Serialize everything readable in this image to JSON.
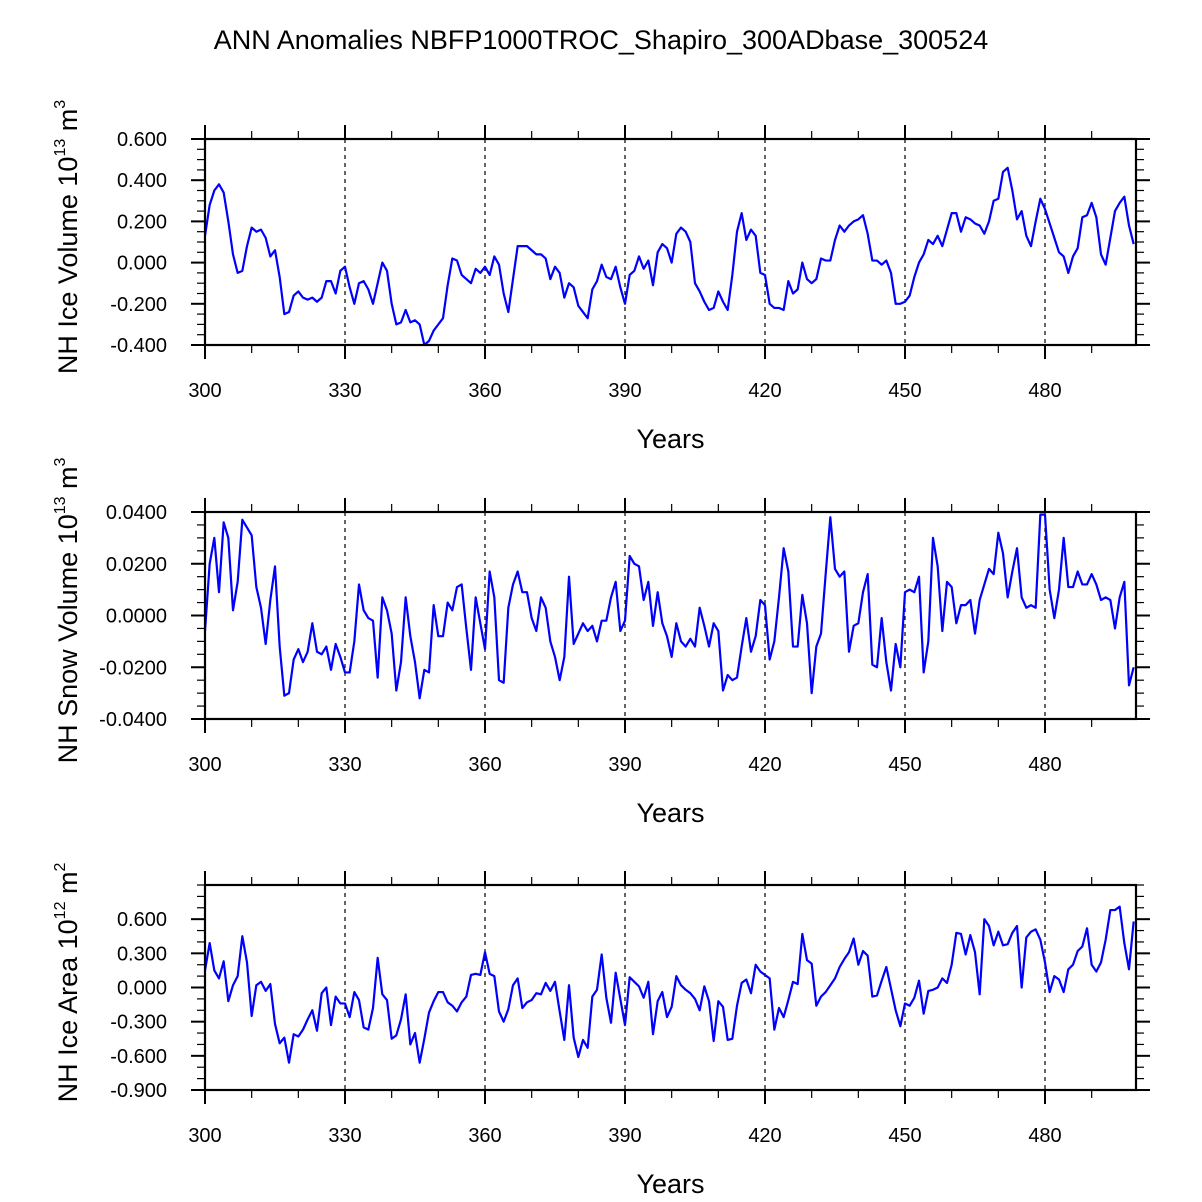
{
  "chart_data": {
    "title": "ANN Anomalies NBFP1000TROC_Shapiro_300ADbase_300524",
    "line_color": "#0000ff",
    "x_start": 300,
    "panels": [
      {
        "type": "line",
        "name": "ice-volume",
        "ylabel_main": "NH Ice Volume 10",
        "ylabel_exp": "13",
        "ylabel_unit": " m",
        "ylabel_unit_exp": "3",
        "xlabel": "Years",
        "xlim": [
          300,
          499.5
        ],
        "ylim": [
          -0.4,
          0.6
        ],
        "xticks": [
          300,
          330,
          360,
          390,
          420,
          450,
          480
        ],
        "xtick_labels": [
          "300",
          "330",
          "360",
          "390",
          "420",
          "450",
          "480"
        ],
        "x_minor_step": 10,
        "yticks": [
          -0.4,
          -0.2,
          0.0,
          0.2,
          0.4,
          0.6
        ],
        "ytick_labels": [
          "-0.400",
          "-0.200",
          "0.000",
          "0.200",
          "0.400",
          "0.600"
        ],
        "y_minor_step": 0.05,
        "grid": "vertical dashed at major x ticks",
        "values": [
          0.13,
          0.28,
          0.35,
          0.38,
          0.34,
          0.2,
          0.04,
          -0.05,
          -0.04,
          0.08,
          0.17,
          0.15,
          0.16,
          0.12,
          0.03,
          0.06,
          -0.07,
          -0.25,
          -0.24,
          -0.16,
          -0.14,
          -0.17,
          -0.18,
          -0.17,
          -0.19,
          -0.17,
          -0.09,
          -0.09,
          -0.15,
          -0.04,
          -0.02,
          -0.12,
          -0.2,
          -0.1,
          -0.09,
          -0.13,
          -0.2,
          -0.1,
          0.0,
          -0.04,
          -0.2,
          -0.3,
          -0.29,
          -0.23,
          -0.29,
          -0.28,
          -0.3,
          -0.4,
          -0.38,
          -0.33,
          -0.3,
          -0.27,
          -0.11,
          0.02,
          0.01,
          -0.06,
          -0.08,
          -0.1,
          -0.03,
          -0.05,
          -0.02,
          -0.06,
          0.03,
          -0.01,
          -0.15,
          -0.24,
          -0.08,
          0.08,
          0.08,
          0.08,
          0.06,
          0.04,
          0.04,
          0.02,
          -0.08,
          -0.02,
          -0.05,
          -0.17,
          -0.1,
          -0.12,
          -0.21,
          -0.24,
          -0.27,
          -0.13,
          -0.09,
          -0.01,
          -0.07,
          -0.08,
          -0.02,
          -0.12,
          -0.2,
          -0.06,
          -0.04,
          0.03,
          -0.03,
          0.01,
          -0.11,
          0.05,
          0.09,
          0.07,
          0.0,
          0.14,
          0.17,
          0.15,
          0.1,
          -0.1,
          -0.14,
          -0.19,
          -0.23,
          -0.22,
          -0.14,
          -0.19,
          -0.23,
          -0.06,
          0.15,
          0.24,
          0.11,
          0.16,
          0.13,
          -0.05,
          -0.06,
          -0.2,
          -0.22,
          -0.22,
          -0.23,
          -0.09,
          -0.15,
          -0.13,
          0.0,
          -0.08,
          -0.1,
          -0.08,
          0.02,
          0.01,
          0.01,
          0.11,
          0.18,
          0.15,
          0.18,
          0.2,
          0.21,
          0.23,
          0.14,
          0.01,
          0.01,
          -0.01,
          0.01,
          -0.05,
          -0.2,
          -0.2,
          -0.19,
          -0.16,
          -0.07,
          0.0,
          0.04,
          0.11,
          0.09,
          0.13,
          0.08,
          0.16,
          0.24,
          0.24,
          0.15,
          0.22,
          0.21,
          0.19,
          0.18,
          0.14,
          0.2,
          0.3,
          0.31,
          0.44,
          0.46,
          0.35,
          0.21,
          0.25,
          0.13,
          0.08,
          0.2,
          0.31,
          0.26,
          0.19,
          0.12,
          0.05,
          0.03,
          -0.05,
          0.03,
          0.07,
          0.22,
          0.23,
          0.29,
          0.22,
          0.04,
          -0.01,
          0.12,
          0.25,
          0.29,
          0.32,
          0.18,
          0.09
        ]
      },
      {
        "type": "line",
        "name": "snow-volume",
        "ylabel_main": "NH Snow Volume 10",
        "ylabel_exp": "13",
        "ylabel_unit": " m",
        "ylabel_unit_exp": "3",
        "xlabel": "Years",
        "xlim": [
          300,
          499.5
        ],
        "ylim": [
          -0.04,
          0.04
        ],
        "xticks": [
          300,
          330,
          360,
          390,
          420,
          450,
          480
        ],
        "xtick_labels": [
          "300",
          "330",
          "360",
          "390",
          "420",
          "450",
          "480"
        ],
        "x_minor_step": 10,
        "yticks": [
          -0.04,
          -0.02,
          0.0,
          0.02,
          0.04
        ],
        "ytick_labels": [
          "-0.0400",
          "-0.0200",
          "0.0000",
          "0.0200",
          "0.0400"
        ],
        "y_minor_step": 0.005,
        "grid": "vertical dashed at major x ticks",
        "values": [
          -0.006,
          0.02,
          0.03,
          0.009,
          0.036,
          0.03,
          0.002,
          0.013,
          0.037,
          0.034,
          0.031,
          0.011,
          0.003,
          -0.011,
          0.006,
          0.019,
          -0.012,
          -0.031,
          -0.03,
          -0.017,
          -0.013,
          -0.018,
          -0.014,
          -0.003,
          -0.014,
          -0.015,
          -0.012,
          -0.021,
          -0.011,
          -0.016,
          -0.022,
          -0.022,
          -0.01,
          0.012,
          0.002,
          -0.001,
          -0.002,
          -0.024,
          0.007,
          0.002,
          -0.007,
          -0.029,
          -0.018,
          0.007,
          -0.008,
          -0.018,
          -0.032,
          -0.021,
          -0.022,
          0.004,
          -0.008,
          -0.008,
          0.005,
          0.002,
          0.011,
          0.012,
          -0.005,
          -0.021,
          0.007,
          -0.003,
          -0.013,
          0.017,
          0.007,
          -0.025,
          -0.026,
          0.003,
          0.012,
          0.017,
          0.009,
          0.009,
          -0.001,
          -0.006,
          0.007,
          0.003,
          -0.01,
          -0.016,
          -0.025,
          -0.016,
          0.015,
          -0.011,
          -0.007,
          -0.003,
          -0.006,
          -0.004,
          -0.01,
          -0.002,
          -0.002,
          0.007,
          0.013,
          -0.006,
          -0.002,
          0.023,
          0.02,
          0.019,
          0.006,
          0.013,
          -0.004,
          0.009,
          -0.003,
          -0.008,
          -0.016,
          -0.003,
          -0.01,
          -0.012,
          -0.009,
          -0.012,
          0.003,
          -0.004,
          -0.012,
          -0.003,
          -0.006,
          -0.029,
          -0.023,
          -0.025,
          -0.024,
          -0.012,
          -0.001,
          -0.014,
          -0.008,
          0.006,
          0.004,
          -0.017,
          -0.01,
          0.007,
          0.026,
          0.017,
          -0.012,
          -0.012,
          0.008,
          -0.003,
          -0.03,
          -0.012,
          -0.007,
          0.016,
          0.038,
          0.018,
          0.015,
          0.017,
          -0.014,
          -0.004,
          -0.003,
          0.009,
          0.016,
          -0.019,
          -0.02,
          -0.001,
          -0.018,
          -0.029,
          -0.011,
          -0.02,
          0.009,
          0.01,
          0.009,
          0.015,
          -0.022,
          -0.01,
          0.03,
          0.019,
          -0.006,
          0.013,
          0.011,
          -0.003,
          0.004,
          0.004,
          0.006,
          -0.007,
          0.006,
          0.012,
          0.018,
          0.016,
          0.032,
          0.024,
          0.007,
          0.017,
          0.026,
          0.007,
          0.003,
          0.004,
          0.003,
          0.039,
          0.039,
          0.01,
          -0.001,
          0.01,
          0.03,
          0.011,
          0.011,
          0.017,
          0.012,
          0.012,
          0.016,
          0.012,
          0.006,
          0.007,
          0.006,
          -0.005,
          0.007,
          0.013,
          -0.027,
          -0.02
        ]
      },
      {
        "type": "line",
        "name": "ice-area",
        "ylabel_main": "NH Ice Area 10",
        "ylabel_exp": "12",
        "ylabel_unit": " m",
        "ylabel_unit_exp": "2",
        "xlabel": "Years",
        "xlim": [
          300,
          499.5
        ],
        "ylim": [
          -0.9,
          0.9
        ],
        "xticks": [
          300,
          330,
          360,
          390,
          420,
          450,
          480
        ],
        "xtick_labels": [
          "300",
          "330",
          "360",
          "390",
          "420",
          "450",
          "480"
        ],
        "x_minor_step": 10,
        "yticks": [
          -0.9,
          -0.6,
          -0.3,
          0.0,
          0.3,
          0.6
        ],
        "ytick_labels": [
          "-0.900",
          "-0.600",
          "-0.300",
          "0.000",
          "0.300",
          "0.600"
        ],
        "y_minor_step": 0.1,
        "grid": "vertical dashed at major x ticks",
        "values": [
          0.15,
          0.39,
          0.15,
          0.08,
          0.23,
          -0.12,
          0.02,
          0.1,
          0.45,
          0.22,
          -0.25,
          0.02,
          0.05,
          -0.03,
          0.03,
          -0.32,
          -0.49,
          -0.44,
          -0.66,
          -0.41,
          -0.43,
          -0.37,
          -0.28,
          -0.2,
          -0.38,
          -0.05,
          0.0,
          -0.33,
          -0.08,
          -0.14,
          -0.14,
          -0.26,
          -0.04,
          -0.11,
          -0.35,
          -0.37,
          -0.18,
          0.26,
          -0.06,
          -0.11,
          -0.45,
          -0.42,
          -0.28,
          -0.06,
          -0.5,
          -0.4,
          -0.66,
          -0.45,
          -0.22,
          -0.12,
          -0.04,
          -0.04,
          -0.13,
          -0.16,
          -0.21,
          -0.13,
          -0.08,
          0.11,
          0.12,
          0.11,
          0.31,
          0.12,
          0.1,
          -0.21,
          -0.3,
          -0.19,
          0.02,
          0.08,
          -0.18,
          -0.13,
          -0.11,
          -0.05,
          -0.06,
          0.04,
          -0.03,
          0.05,
          -0.21,
          -0.46,
          0.02,
          -0.44,
          -0.61,
          -0.46,
          -0.53,
          -0.08,
          -0.02,
          0.29,
          -0.09,
          -0.31,
          0.13,
          -0.1,
          -0.33,
          0.09,
          0.05,
          0.01,
          -0.09,
          0.05,
          -0.41,
          -0.12,
          -0.04,
          -0.26,
          -0.17,
          0.1,
          0.02,
          -0.02,
          -0.05,
          -0.1,
          -0.2,
          0.01,
          -0.12,
          -0.47,
          -0.12,
          -0.17,
          -0.46,
          -0.45,
          -0.16,
          0.04,
          0.07,
          -0.05,
          0.2,
          0.14,
          0.11,
          0.08,
          -0.37,
          -0.18,
          -0.26,
          -0.11,
          0.05,
          0.03,
          0.47,
          0.24,
          0.21,
          -0.16,
          -0.08,
          -0.04,
          0.02,
          0.08,
          0.18,
          0.25,
          0.31,
          0.43,
          0.2,
          0.32,
          0.28,
          -0.08,
          -0.07,
          0.06,
          0.18,
          -0.01,
          -0.2,
          -0.34,
          -0.14,
          -0.16,
          -0.09,
          0.06,
          -0.23,
          -0.03,
          -0.02,
          0.0,
          0.08,
          0.04,
          0.2,
          0.48,
          0.47,
          0.29,
          0.46,
          0.31,
          -0.06,
          0.6,
          0.54,
          0.37,
          0.49,
          0.37,
          0.38,
          0.48,
          0.54,
          0.0,
          0.44,
          0.49,
          0.51,
          0.42,
          0.22,
          -0.04,
          0.1,
          0.07,
          -0.04,
          0.16,
          0.2,
          0.32,
          0.36,
          0.52,
          0.2,
          0.14,
          0.22,
          0.42,
          0.68,
          0.68,
          0.71,
          0.39,
          0.16,
          0.58
        ]
      }
    ]
  }
}
